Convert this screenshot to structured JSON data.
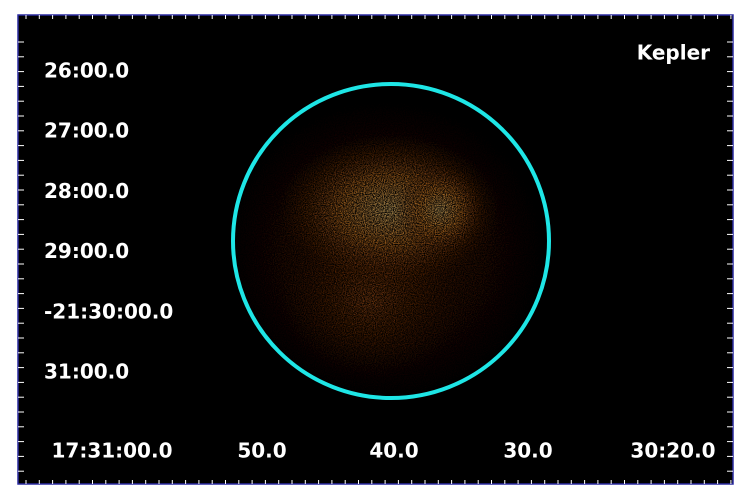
{
  "label": "Kepler",
  "axes": {
    "dec_labels": [
      "26:00.0",
      "27:00.0",
      "28:00.0",
      "29:00.0",
      "-21:30:00.0",
      "31:00.0"
    ],
    "ra_labels": [
      "17:31:00.0",
      "50.0",
      "40.0",
      "30.0",
      "30:20.0"
    ]
  }
}
